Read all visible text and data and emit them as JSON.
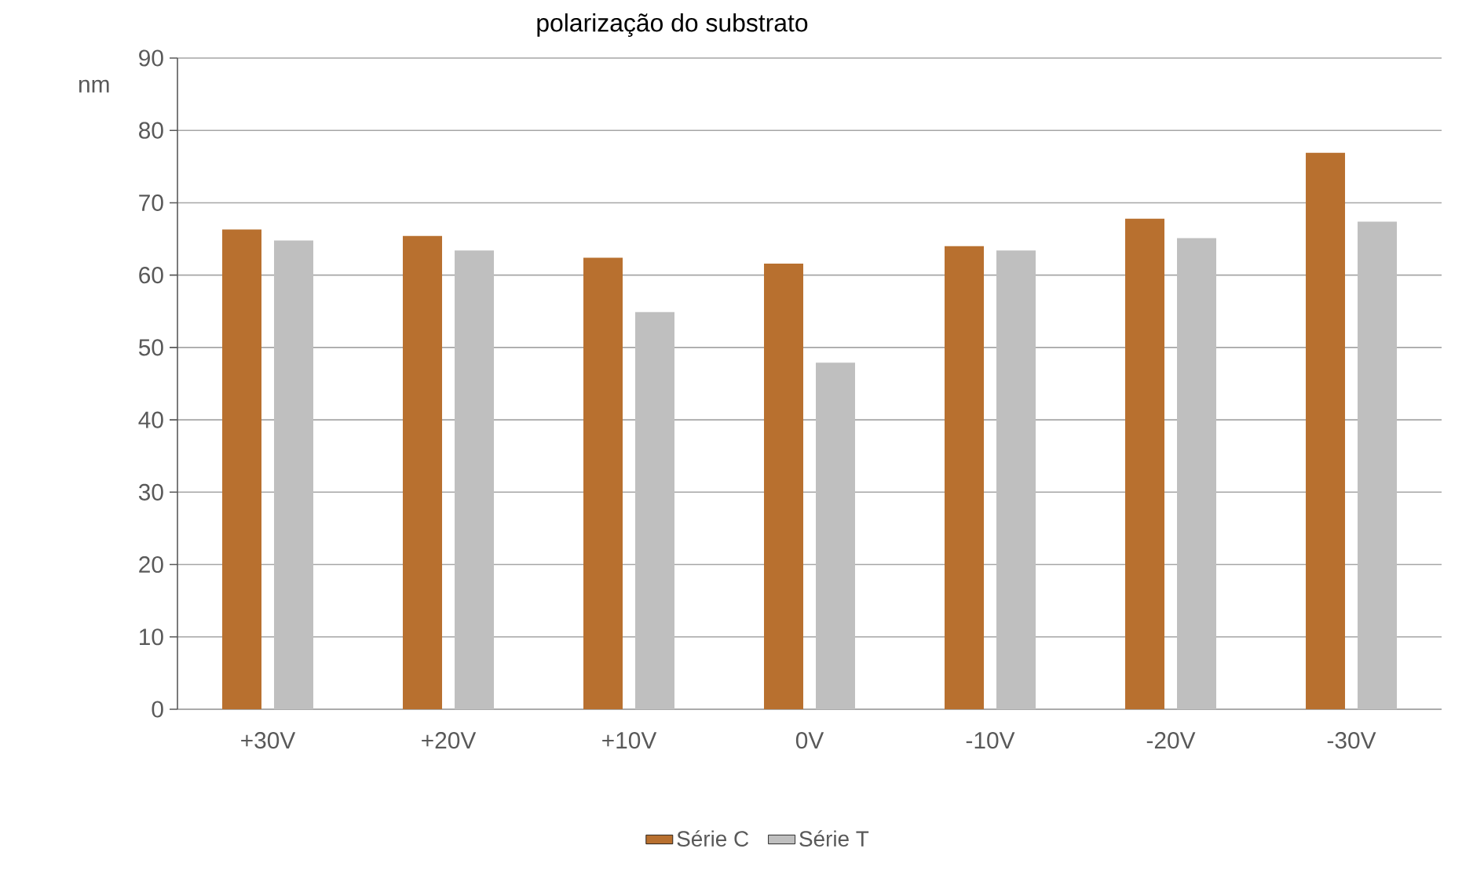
{
  "chart_data": {
    "type": "bar",
    "title": "polarização do substrato",
    "ylabel": "nm",
    "categories": [
      "+30V",
      "+20V",
      "+10V",
      "0V",
      "-10V",
      "-20V",
      "-30V"
    ],
    "series": [
      {
        "name": "Série C",
        "color": "#b8702f",
        "values": [
          66.3,
          65.4,
          62.4,
          61.6,
          64.0,
          67.8,
          76.9
        ]
      },
      {
        "name": "Série T",
        "color": "#bfbfbf",
        "values": [
          64.8,
          63.4,
          54.9,
          47.9,
          63.4,
          65.1,
          67.4
        ]
      }
    ],
    "ylim": [
      0,
      90
    ],
    "yticks": [
      0,
      10,
      20,
      30,
      40,
      50,
      60,
      70,
      80,
      90
    ],
    "grid": "y",
    "legend": "bottom"
  }
}
